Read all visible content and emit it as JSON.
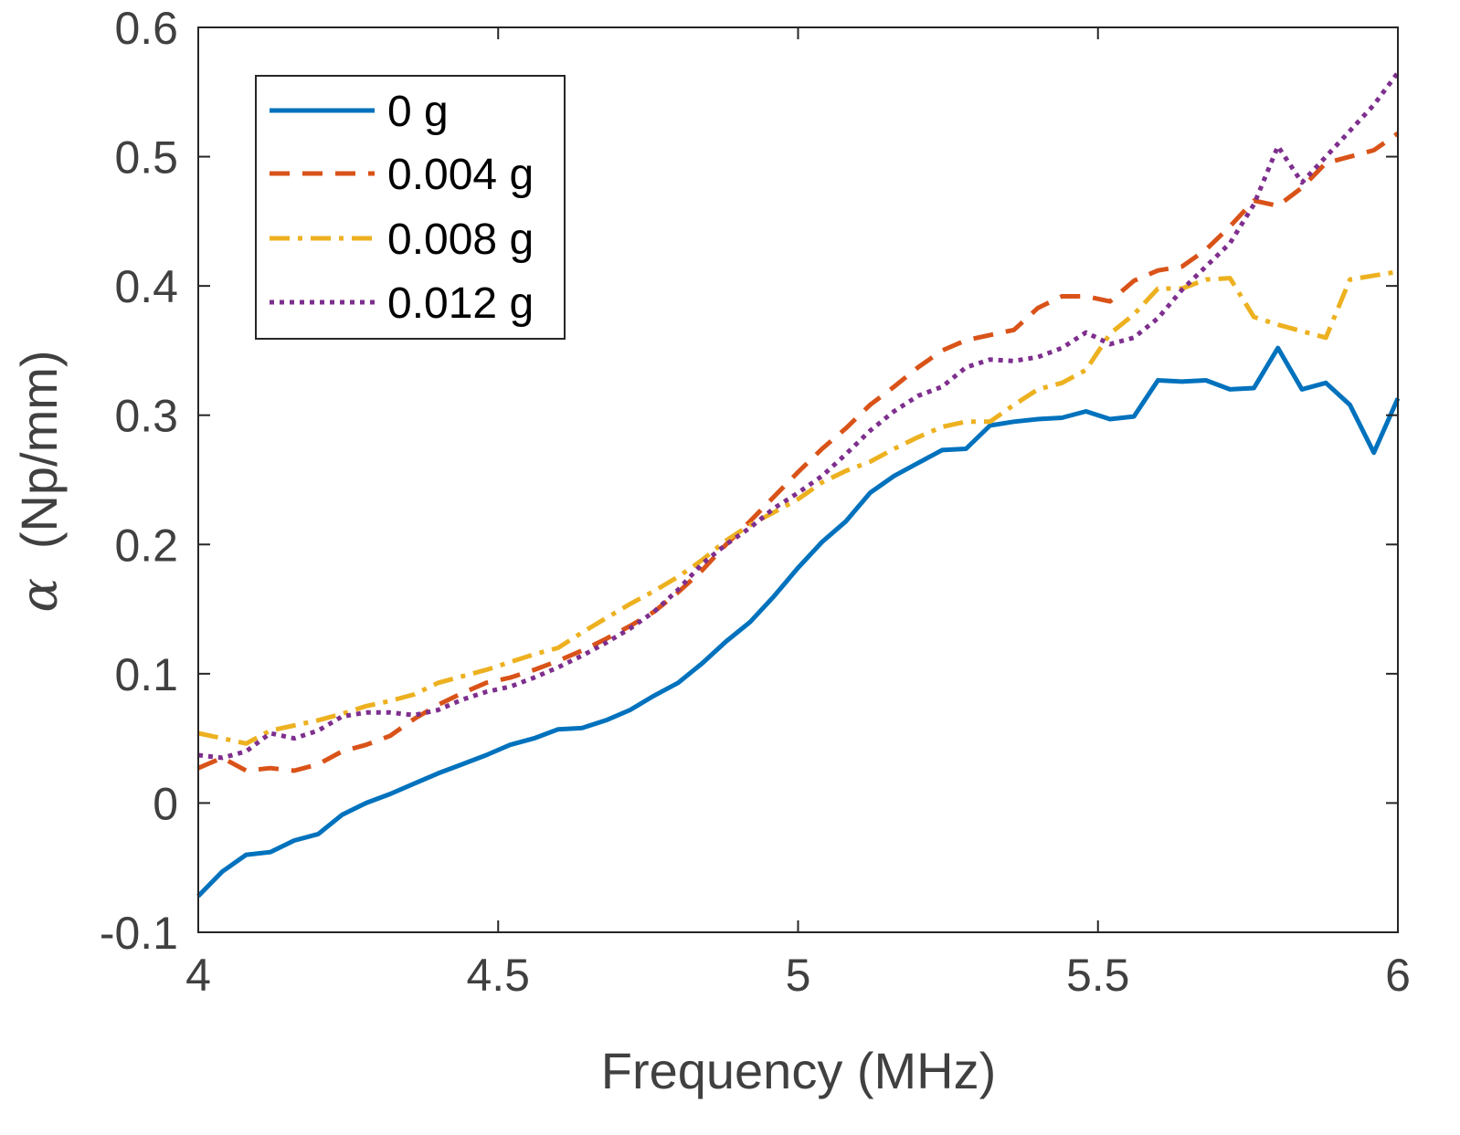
{
  "chart_data": {
    "type": "line",
    "title": "",
    "xlabel": "Frequency (MHz)",
    "ylabel_symbol": "α",
    "ylabel_units": "(Np/mm)",
    "xlim": [
      4,
      6
    ],
    "ylim": [
      -0.1,
      0.6
    ],
    "xticks": [
      4,
      4.5,
      5,
      5.5,
      6
    ],
    "xtick_labels": [
      "4",
      "4.5",
      "5",
      "5.5",
      "6"
    ],
    "yticks": [
      -0.1,
      0,
      0.1,
      0.2,
      0.3,
      0.4,
      0.5,
      0.6
    ],
    "ytick_labels": [
      "-0.1",
      "0",
      "0.1",
      "0.2",
      "0.3",
      "0.4",
      "0.5",
      "0.6"
    ],
    "grid": false,
    "legend_position": "top-left",
    "series": [
      {
        "name": "0 g",
        "color": "#0072BD",
        "style": "solid",
        "x": [
          4.0,
          4.04,
          4.08,
          4.12,
          4.16,
          4.2,
          4.24,
          4.28,
          4.32,
          4.36,
          4.4,
          4.44,
          4.48,
          4.52,
          4.56,
          4.6,
          4.64,
          4.68,
          4.72,
          4.76,
          4.8,
          4.84,
          4.88,
          4.92,
          4.96,
          5.0,
          5.04,
          5.08,
          5.12,
          5.16,
          5.2,
          5.24,
          5.28,
          5.32,
          5.36,
          5.4,
          5.44,
          5.48,
          5.52,
          5.56,
          5.6,
          5.64,
          5.68,
          5.72,
          5.76,
          5.8,
          5.84,
          5.88,
          5.92,
          5.96,
          6.0
        ],
        "y": [
          -0.072,
          -0.053,
          -0.04,
          -0.038,
          -0.029,
          -0.024,
          -0.009,
          0.0,
          0.007,
          0.015,
          0.023,
          0.03,
          0.037,
          0.045,
          0.05,
          0.057,
          0.058,
          0.064,
          0.072,
          0.083,
          0.093,
          0.108,
          0.125,
          0.14,
          0.16,
          0.182,
          0.202,
          0.218,
          0.24,
          0.253,
          0.263,
          0.273,
          0.274,
          0.292,
          0.295,
          0.297,
          0.298,
          0.303,
          0.297,
          0.299,
          0.327,
          0.326,
          0.327,
          0.32,
          0.321,
          0.352,
          0.32,
          0.325,
          0.308,
          0.271,
          0.313
        ]
      },
      {
        "name": "0.004 g",
        "color": "#D95319",
        "style": "dashed",
        "x": [
          4.0,
          4.04,
          4.08,
          4.12,
          4.16,
          4.2,
          4.24,
          4.28,
          4.32,
          4.36,
          4.4,
          4.44,
          4.48,
          4.52,
          4.56,
          4.6,
          4.64,
          4.68,
          4.72,
          4.76,
          4.8,
          4.84,
          4.88,
          4.92,
          4.96,
          5.0,
          5.04,
          5.08,
          5.12,
          5.16,
          5.2,
          5.24,
          5.28,
          5.32,
          5.36,
          5.4,
          5.44,
          5.48,
          5.52,
          5.56,
          5.6,
          5.64,
          5.68,
          5.72,
          5.76,
          5.8,
          5.84,
          5.88,
          5.92,
          5.96,
          6.0
        ],
        "y": [
          0.027,
          0.035,
          0.025,
          0.027,
          0.025,
          0.03,
          0.04,
          0.045,
          0.052,
          0.065,
          0.076,
          0.085,
          0.093,
          0.097,
          0.103,
          0.11,
          0.118,
          0.127,
          0.137,
          0.148,
          0.163,
          0.18,
          0.2,
          0.218,
          0.237,
          0.256,
          0.274,
          0.29,
          0.308,
          0.322,
          0.337,
          0.35,
          0.358,
          0.362,
          0.366,
          0.383,
          0.392,
          0.392,
          0.388,
          0.404,
          0.412,
          0.415,
          0.428,
          0.446,
          0.466,
          0.462,
          0.476,
          0.495,
          0.5,
          0.505,
          0.518
        ]
      },
      {
        "name": "0.008 g",
        "color": "#EDB120",
        "style": "dashdot",
        "x": [
          4.0,
          4.04,
          4.08,
          4.12,
          4.16,
          4.2,
          4.24,
          4.28,
          4.32,
          4.36,
          4.4,
          4.44,
          4.48,
          4.52,
          4.56,
          4.6,
          4.64,
          4.68,
          4.72,
          4.76,
          4.8,
          4.84,
          4.88,
          4.92,
          4.96,
          5.0,
          5.04,
          5.08,
          5.12,
          5.16,
          5.2,
          5.24,
          5.28,
          5.32,
          5.36,
          5.4,
          5.44,
          5.48,
          5.52,
          5.56,
          5.6,
          5.64,
          5.68,
          5.72,
          5.76,
          5.8,
          5.84,
          5.88,
          5.92,
          5.96,
          6.0
        ],
        "y": [
          0.054,
          0.05,
          0.046,
          0.056,
          0.06,
          0.064,
          0.069,
          0.075,
          0.079,
          0.084,
          0.093,
          0.098,
          0.103,
          0.109,
          0.115,
          0.12,
          0.132,
          0.143,
          0.154,
          0.164,
          0.175,
          0.188,
          0.203,
          0.215,
          0.225,
          0.235,
          0.248,
          0.257,
          0.264,
          0.274,
          0.283,
          0.291,
          0.295,
          0.295,
          0.308,
          0.32,
          0.325,
          0.335,
          0.363,
          0.378,
          0.398,
          0.398,
          0.405,
          0.406,
          0.376,
          0.37,
          0.365,
          0.36,
          0.405,
          0.408,
          0.411
        ]
      },
      {
        "name": "0.012 g",
        "color": "#7E2F8E",
        "style": "dotted",
        "x": [
          4.0,
          4.04,
          4.08,
          4.12,
          4.16,
          4.2,
          4.24,
          4.28,
          4.32,
          4.36,
          4.4,
          4.44,
          4.48,
          4.52,
          4.56,
          4.6,
          4.64,
          4.68,
          4.72,
          4.76,
          4.8,
          4.84,
          4.88,
          4.92,
          4.96,
          5.0,
          5.04,
          5.08,
          5.12,
          5.16,
          5.2,
          5.24,
          5.28,
          5.32,
          5.36,
          5.4,
          5.44,
          5.48,
          5.52,
          5.56,
          5.6,
          5.64,
          5.68,
          5.72,
          5.76,
          5.8,
          5.84,
          5.88,
          5.92,
          5.96,
          6.0
        ],
        "y": [
          0.037,
          0.035,
          0.04,
          0.054,
          0.05,
          0.056,
          0.067,
          0.07,
          0.07,
          0.068,
          0.072,
          0.08,
          0.086,
          0.09,
          0.097,
          0.105,
          0.114,
          0.124,
          0.135,
          0.148,
          0.165,
          0.185,
          0.2,
          0.213,
          0.228,
          0.24,
          0.253,
          0.27,
          0.288,
          0.303,
          0.315,
          0.322,
          0.337,
          0.343,
          0.342,
          0.345,
          0.352,
          0.364,
          0.355,
          0.36,
          0.375,
          0.397,
          0.415,
          0.433,
          0.463,
          0.508,
          0.48,
          0.5,
          0.52,
          0.54,
          0.565
        ]
      }
    ]
  }
}
